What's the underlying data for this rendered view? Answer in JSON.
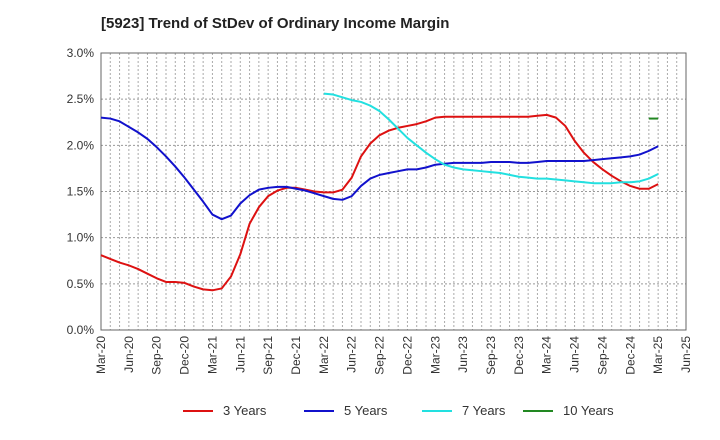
{
  "chart_data": {
    "type": "line",
    "title": "[5923]  Trend of StDev of Ordinary Income Margin",
    "xlabel": "",
    "ylabel": "",
    "ylim": [
      0,
      3.0
    ],
    "yticks": [
      "0.0%",
      "0.5%",
      "1.0%",
      "1.5%",
      "2.0%",
      "2.5%",
      "3.0%"
    ],
    "xticks": [
      "Mar-20",
      "Jun-20",
      "Sep-20",
      "Dec-20",
      "Mar-21",
      "Jun-21",
      "Sep-21",
      "Dec-21",
      "Mar-22",
      "Jun-22",
      "Sep-22",
      "Dec-22",
      "Mar-23",
      "Jun-23",
      "Sep-23",
      "Dec-23",
      "Mar-24",
      "Jun-24",
      "Sep-24",
      "Dec-24",
      "Mar-25",
      "Jun-25"
    ],
    "grid": true,
    "legend_position": "bottom",
    "series": [
      {
        "name": "3 Years",
        "color": "#dd1111",
        "points": [
          [
            "2020-03",
            0.81
          ],
          [
            "2020-04",
            0.77
          ],
          [
            "2020-05",
            0.73
          ],
          [
            "2020-06",
            0.7
          ],
          [
            "2020-07",
            0.66
          ],
          [
            "2020-08",
            0.61
          ],
          [
            "2020-09",
            0.56
          ],
          [
            "2020-10",
            0.52
          ],
          [
            "2020-11",
            0.52
          ],
          [
            "2020-12",
            0.51
          ],
          [
            "2021-01",
            0.47
          ],
          [
            "2021-02",
            0.44
          ],
          [
            "2021-03",
            0.43
          ],
          [
            "2021-04",
            0.45
          ],
          [
            "2021-05",
            0.58
          ],
          [
            "2021-06",
            0.82
          ],
          [
            "2021-07",
            1.15
          ],
          [
            "2021-08",
            1.33
          ],
          [
            "2021-09",
            1.45
          ],
          [
            "2021-10",
            1.51
          ],
          [
            "2021-11",
            1.54
          ],
          [
            "2021-12",
            1.54
          ],
          [
            "2022-01",
            1.52
          ],
          [
            "2022-02",
            1.5
          ],
          [
            "2022-03",
            1.49
          ],
          [
            "2022-04",
            1.49
          ],
          [
            "2022-05",
            1.52
          ],
          [
            "2022-06",
            1.65
          ],
          [
            "2022-07",
            1.88
          ],
          [
            "2022-08",
            2.02
          ],
          [
            "2022-09",
            2.11
          ],
          [
            "2022-10",
            2.16
          ],
          [
            "2022-11",
            2.19
          ],
          [
            "2022-12",
            2.21
          ],
          [
            "2023-01",
            2.23
          ],
          [
            "2023-02",
            2.26
          ],
          [
            "2023-03",
            2.3
          ],
          [
            "2023-04",
            2.31
          ],
          [
            "2023-05",
            2.31
          ],
          [
            "2023-06",
            2.31
          ],
          [
            "2023-07",
            2.31
          ],
          [
            "2023-08",
            2.31
          ],
          [
            "2023-09",
            2.31
          ],
          [
            "2023-10",
            2.31
          ],
          [
            "2023-11",
            2.31
          ],
          [
            "2023-12",
            2.31
          ],
          [
            "2024-01",
            2.31
          ],
          [
            "2024-02",
            2.32
          ],
          [
            "2024-03",
            2.33
          ],
          [
            "2024-04",
            2.3
          ],
          [
            "2024-05",
            2.21
          ],
          [
            "2024-06",
            2.05
          ],
          [
            "2024-07",
            1.92
          ],
          [
            "2024-08",
            1.82
          ],
          [
            "2024-09",
            1.74
          ],
          [
            "2024-10",
            1.67
          ],
          [
            "2024-11",
            1.61
          ],
          [
            "2024-12",
            1.56
          ],
          [
            "2025-01",
            1.53
          ],
          [
            "2025-02",
            1.53
          ],
          [
            "2025-03",
            1.58
          ]
        ]
      },
      {
        "name": "5 Years",
        "color": "#1111cc",
        "points": [
          [
            "2020-03",
            2.3
          ],
          [
            "2020-04",
            2.29
          ],
          [
            "2020-05",
            2.26
          ],
          [
            "2020-06",
            2.2
          ],
          [
            "2020-07",
            2.14
          ],
          [
            "2020-08",
            2.07
          ],
          [
            "2020-09",
            1.98
          ],
          [
            "2020-10",
            1.88
          ],
          [
            "2020-11",
            1.77
          ],
          [
            "2020-12",
            1.65
          ],
          [
            "2021-01",
            1.52
          ],
          [
            "2021-02",
            1.39
          ],
          [
            "2021-03",
            1.25
          ],
          [
            "2021-04",
            1.2
          ],
          [
            "2021-05",
            1.24
          ],
          [
            "2021-06",
            1.37
          ],
          [
            "2021-07",
            1.46
          ],
          [
            "2021-08",
            1.52
          ],
          [
            "2021-09",
            1.54
          ],
          [
            "2021-10",
            1.55
          ],
          [
            "2021-11",
            1.55
          ],
          [
            "2021-12",
            1.53
          ],
          [
            "2022-01",
            1.51
          ],
          [
            "2022-02",
            1.48
          ],
          [
            "2022-03",
            1.45
          ],
          [
            "2022-04",
            1.42
          ],
          [
            "2022-05",
            1.41
          ],
          [
            "2022-06",
            1.45
          ],
          [
            "2022-07",
            1.56
          ],
          [
            "2022-08",
            1.64
          ],
          [
            "2022-09",
            1.68
          ],
          [
            "2022-10",
            1.7
          ],
          [
            "2022-11",
            1.72
          ],
          [
            "2022-12",
            1.74
          ],
          [
            "2023-01",
            1.74
          ],
          [
            "2023-02",
            1.76
          ],
          [
            "2023-03",
            1.79
          ],
          [
            "2023-04",
            1.8
          ],
          [
            "2023-05",
            1.81
          ],
          [
            "2023-06",
            1.81
          ],
          [
            "2023-07",
            1.81
          ],
          [
            "2023-08",
            1.81
          ],
          [
            "2023-09",
            1.82
          ],
          [
            "2023-10",
            1.82
          ],
          [
            "2023-11",
            1.82
          ],
          [
            "2023-12",
            1.81
          ],
          [
            "2024-01",
            1.81
          ],
          [
            "2024-02",
            1.82
          ],
          [
            "2024-03",
            1.83
          ],
          [
            "2024-04",
            1.83
          ],
          [
            "2024-05",
            1.83
          ],
          [
            "2024-06",
            1.83
          ],
          [
            "2024-07",
            1.83
          ],
          [
            "2024-08",
            1.84
          ],
          [
            "2024-09",
            1.85
          ],
          [
            "2024-10",
            1.86
          ],
          [
            "2024-11",
            1.87
          ],
          [
            "2024-12",
            1.88
          ],
          [
            "2025-01",
            1.9
          ],
          [
            "2025-02",
            1.94
          ],
          [
            "2025-03",
            1.99
          ]
        ]
      },
      {
        "name": "7 Years",
        "color": "#22e0e0",
        "points": [
          [
            "2022-03",
            2.56
          ],
          [
            "2022-04",
            2.55
          ],
          [
            "2022-05",
            2.52
          ],
          [
            "2022-06",
            2.49
          ],
          [
            "2022-07",
            2.47
          ],
          [
            "2022-08",
            2.43
          ],
          [
            "2022-09",
            2.37
          ],
          [
            "2022-10",
            2.28
          ],
          [
            "2022-11",
            2.18
          ],
          [
            "2022-12",
            2.08
          ],
          [
            "2023-01",
            2.0
          ],
          [
            "2023-02",
            1.92
          ],
          [
            "2023-03",
            1.85
          ],
          [
            "2023-04",
            1.79
          ],
          [
            "2023-05",
            1.76
          ],
          [
            "2023-06",
            1.74
          ],
          [
            "2023-07",
            1.73
          ],
          [
            "2023-08",
            1.72
          ],
          [
            "2023-09",
            1.71
          ],
          [
            "2023-10",
            1.7
          ],
          [
            "2023-11",
            1.68
          ],
          [
            "2023-12",
            1.66
          ],
          [
            "2024-01",
            1.65
          ],
          [
            "2024-02",
            1.64
          ],
          [
            "2024-03",
            1.64
          ],
          [
            "2024-04",
            1.63
          ],
          [
            "2024-05",
            1.62
          ],
          [
            "2024-06",
            1.61
          ],
          [
            "2024-07",
            1.6
          ],
          [
            "2024-08",
            1.59
          ],
          [
            "2024-09",
            1.59
          ],
          [
            "2024-10",
            1.59
          ],
          [
            "2024-11",
            1.6
          ],
          [
            "2024-12",
            1.6
          ],
          [
            "2025-01",
            1.61
          ],
          [
            "2025-02",
            1.64
          ],
          [
            "2025-03",
            1.69
          ]
        ]
      },
      {
        "name": "10 Years",
        "color": "#228822",
        "points": [
          [
            "2025-02",
            2.29
          ],
          [
            "2025-03",
            2.29
          ]
        ]
      }
    ]
  }
}
